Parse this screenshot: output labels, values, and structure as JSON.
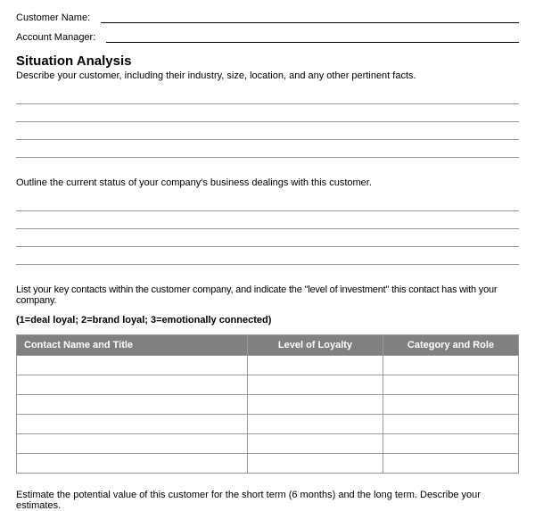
{
  "fields": {
    "customerName": "Customer Name:",
    "accountManager": "Account Manager:"
  },
  "section": {
    "title": "Situation Analysis",
    "desc": "Describe your customer, including their industry, size, location, and any other pertinent facts."
  },
  "outline": "Outline the current status of your company's business dealings with this customer.",
  "contactsIntro": "List your key contacts within the customer company, and indicate the \"level of investment\" this contact has with your company.",
  "legend": "(1=deal loyal; 2=brand loyal; 3=emotionally connected)",
  "table": {
    "col1": "Contact Name and Title",
    "col2": "Level of Loyalty",
    "col3": "Category and Role",
    "rowCount": 6
  },
  "estimate": "Estimate the potential value of this customer for the short term (6 months) and the long term. Describe your estimates.",
  "style": {
    "headerBg": "#808080",
    "headerText": "#ffffff",
    "lineColor": "#999999"
  }
}
